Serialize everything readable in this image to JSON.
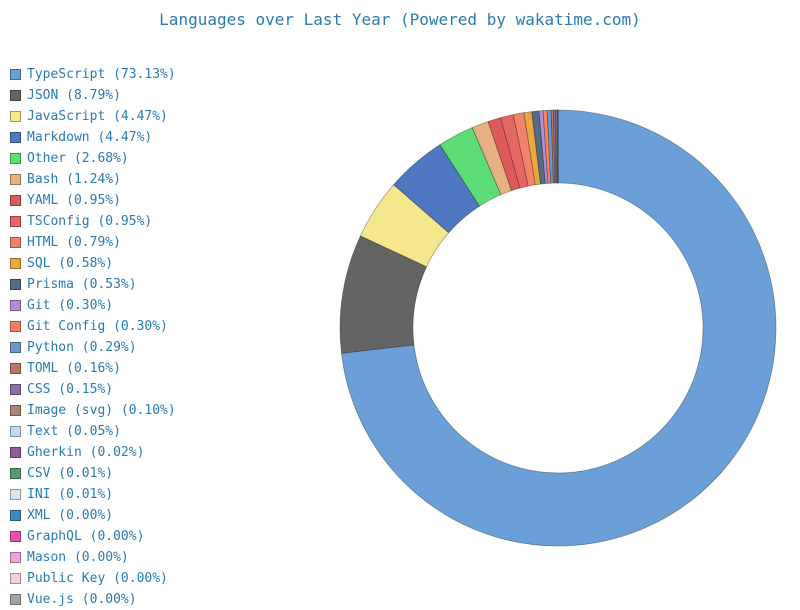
{
  "chart_data": {
    "type": "pie",
    "style": "donut",
    "title": "Languages over Last Year (Powered by wakatime.com)",
    "legend_position": "left",
    "slices": [
      {
        "label": "TypeScript (73.13%)",
        "name": "TypeScript",
        "value": 73.13,
        "color": "#6b9fd8"
      },
      {
        "label": "JSON (8.79%)",
        "name": "JSON",
        "value": 8.79,
        "color": "#646464"
      },
      {
        "label": "JavaScript (4.47%)",
        "name": "JavaScript",
        "value": 4.47,
        "color": "#f5e88c"
      },
      {
        "label": "Markdown (4.47%)",
        "name": "Markdown",
        "value": 4.47,
        "color": "#5077c1"
      },
      {
        "label": "Other (2.68%)",
        "name": "Other",
        "value": 2.68,
        "color": "#5ddd76"
      },
      {
        "label": "Bash (1.24%)",
        "name": "Bash",
        "value": 1.24,
        "color": "#e6b283"
      },
      {
        "label": "YAML (0.95%)",
        "name": "YAML",
        "value": 0.95,
        "color": "#de5a5a"
      },
      {
        "label": "TSConfig (0.95%)",
        "name": "TSConfig",
        "value": 0.95,
        "color": "#e66565"
      },
      {
        "label": "HTML (0.79%)",
        "name": "HTML",
        "value": 0.79,
        "color": "#f2836b"
      },
      {
        "label": "SQL (0.58%)",
        "name": "SQL",
        "value": 0.58,
        "color": "#e8a83e"
      },
      {
        "label": "Prisma (0.53%)",
        "name": "Prisma",
        "value": 0.53,
        "color": "#526c85"
      },
      {
        "label": "Git (0.30%)",
        "name": "Git",
        "value": 0.3,
        "color": "#b08ed1"
      },
      {
        "label": "Git Config (0.30%)",
        "name": "Git Config",
        "value": 0.3,
        "color": "#fa8264"
      },
      {
        "label": "Python (0.29%)",
        "name": "Python",
        "value": 0.29,
        "color": "#6b98c5"
      },
      {
        "label": "TOML (0.16%)",
        "name": "TOML",
        "value": 0.16,
        "color": "#b87960"
      },
      {
        "label": "CSS (0.15%)",
        "name": "CSS",
        "value": 0.15,
        "color": "#8e6fa6"
      },
      {
        "label": "Image (svg) (0.10%)",
        "name": "Image (svg)",
        "value": 0.1,
        "color": "#a8857b"
      },
      {
        "label": "Text (0.05%)",
        "name": "Text",
        "value": 0.05,
        "color": "#c5daf2"
      },
      {
        "label": "Gherkin (0.02%)",
        "name": "Gherkin",
        "value": 0.02,
        "color": "#8f5f96"
      },
      {
        "label": "CSV (0.01%)",
        "name": "CSV",
        "value": 0.01,
        "color": "#5a9874"
      },
      {
        "label": "INI (0.01%)",
        "name": "INI",
        "value": 0.01,
        "color": "#d8e6f0"
      },
      {
        "label": "XML (0.00%)",
        "name": "XML",
        "value": 0.0,
        "color": "#3c8bc8"
      },
      {
        "label": "GraphQL (0.00%)",
        "name": "GraphQL",
        "value": 0.0,
        "color": "#e84eb6"
      },
      {
        "label": "Mason (0.00%)",
        "name": "Mason",
        "value": 0.0,
        "color": "#f0a3d6"
      },
      {
        "label": "Public Key (0.00%)",
        "name": "Public Key",
        "value": 0.0,
        "color": "#f9cfe0"
      },
      {
        "label": "Vue.js (0.00%)",
        "name": "Vue.js",
        "value": 0.0,
        "color": "#a3a3a3"
      }
    ]
  }
}
